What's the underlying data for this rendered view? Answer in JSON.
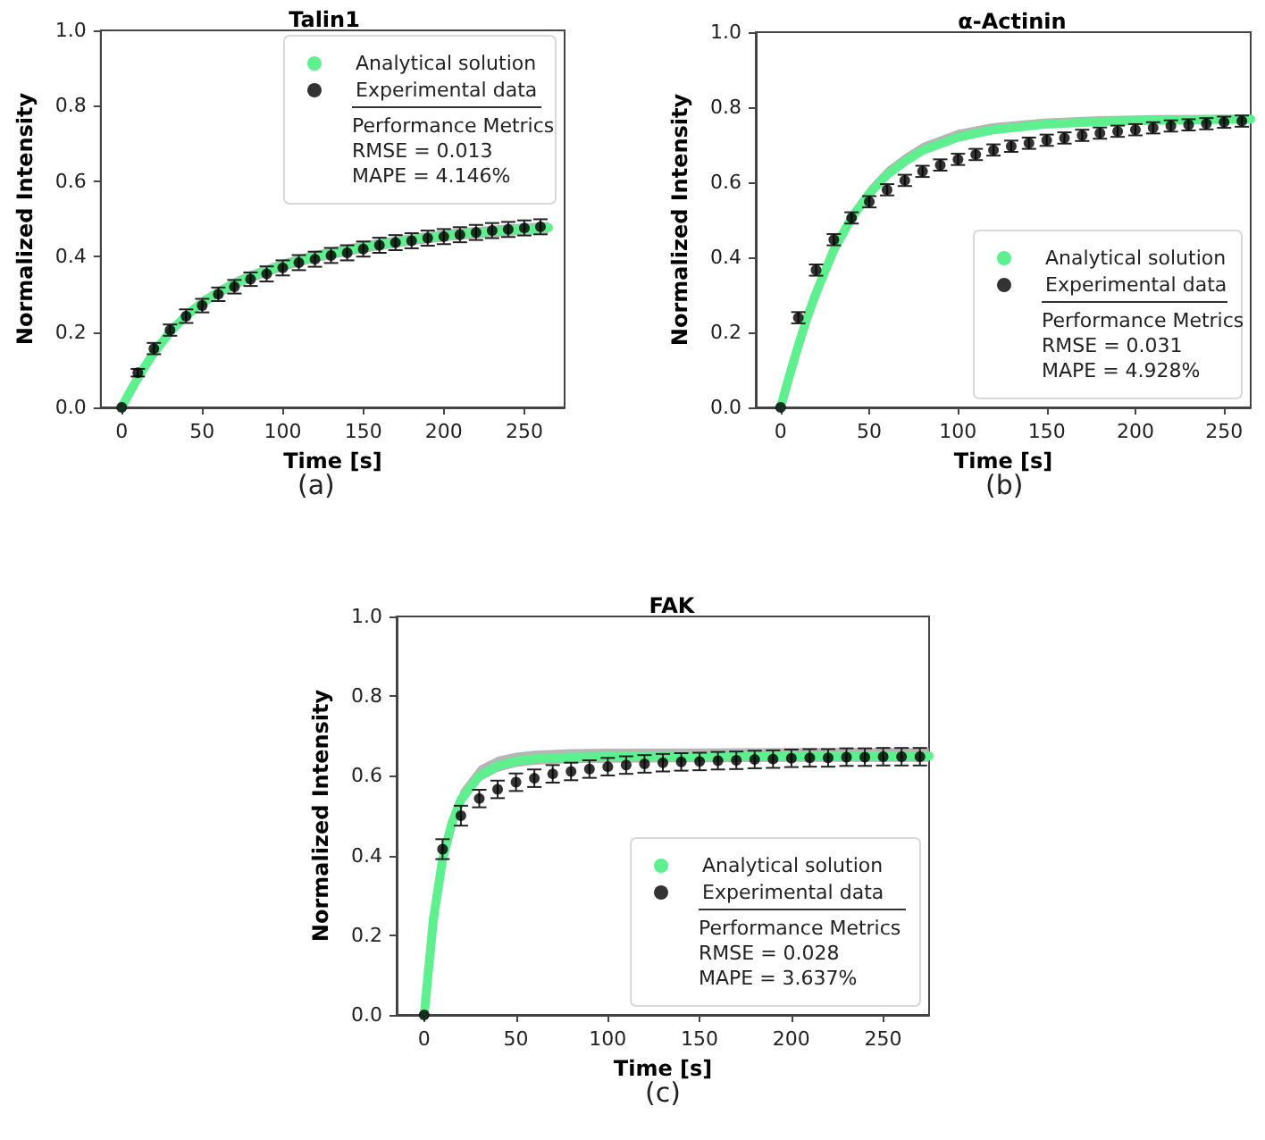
{
  "chart_data": [
    {
      "type": "line",
      "title": "Talin1",
      "xlabel": "Time [s]",
      "ylabel": "Normalized Intensity",
      "xlim": [
        -13,
        275
      ],
      "ylim": [
        0,
        1
      ],
      "xticks": [
        0,
        50,
        100,
        150,
        200,
        250
      ],
      "yticks": [
        {
          "value": 0,
          "label": "0.0"
        },
        {
          "value": 0.2,
          "label": "0.2"
        },
        {
          "value": 0.4,
          "label": "0.4"
        },
        {
          "value": 0.6,
          "label": "0.6"
        },
        {
          "value": 0.8,
          "label": "0.8"
        },
        {
          "value": 1,
          "label": "1.0"
        }
      ],
      "legend": "top right",
      "annotations": [
        "Performance Metrics",
        "RMSE = 0.013",
        "MAPE = 4.146%",
        "(a)"
      ],
      "series": [
        {
          "name": "Analytical solution",
          "marker": "none",
          "color": "#5ef08f",
          "x": [
            0,
            5,
            10,
            15,
            20,
            30,
            40,
            50,
            60,
            70,
            80,
            100,
            120,
            150,
            180,
            210,
            240,
            265
          ],
          "values": [
            0,
            0.04,
            0.078,
            0.112,
            0.145,
            0.2,
            0.243,
            0.278,
            0.305,
            0.328,
            0.347,
            0.377,
            0.4,
            0.425,
            0.445,
            0.46,
            0.47,
            0.477
          ],
          "lower": [
            0,
            0.03,
            0.065,
            0.097,
            0.13,
            0.185,
            0.228,
            0.263,
            0.29,
            0.313,
            0.332,
            0.362,
            0.385,
            0.41,
            0.43,
            0.445,
            0.455,
            0.462
          ],
          "upper": [
            0,
            0.05,
            0.09,
            0.127,
            0.16,
            0.215,
            0.258,
            0.293,
            0.32,
            0.343,
            0.362,
            0.392,
            0.415,
            0.44,
            0.46,
            0.475,
            0.485,
            0.492
          ]
        },
        {
          "name": "Experimental data",
          "type": "scatter",
          "marker": "circle",
          "color": "#000000",
          "x": [
            0,
            10,
            20,
            30,
            40,
            50,
            60,
            70,
            80,
            90,
            100,
            110,
            120,
            130,
            140,
            150,
            160,
            170,
            180,
            190,
            200,
            210,
            220,
            230,
            240,
            250,
            260
          ],
          "values": [
            0,
            0.092,
            0.156,
            0.205,
            0.242,
            0.27,
            0.3,
            0.32,
            0.34,
            0.354,
            0.37,
            0.384,
            0.393,
            0.403,
            0.41,
            0.42,
            0.43,
            0.437,
            0.442,
            0.449,
            0.453,
            0.458,
            0.464,
            0.469,
            0.472,
            0.476,
            0.479
          ],
          "errors": [
            null,
            0.01,
            0.015,
            0.015,
            0.018,
            0.018,
            0.018,
            0.018,
            0.018,
            0.02,
            0.02,
            0.02,
            0.02,
            0.02,
            0.02,
            0.02,
            0.02,
            0.02,
            0.02,
            0.02,
            0.02,
            0.02,
            0.02,
            0.02,
            0.02,
            0.02,
            0.02
          ]
        }
      ]
    },
    {
      "type": "line",
      "title": "α-Actinin",
      "xlabel": "Time [s]",
      "ylabel": "Normalized Intensity",
      "xlim": [
        -14,
        265
      ],
      "ylim": [
        0,
        1
      ],
      "xticks": [
        0,
        50,
        100,
        150,
        200,
        250
      ],
      "yticks": [
        {
          "value": 0,
          "label": "0.0"
        },
        {
          "value": 0.2,
          "label": "0.2"
        },
        {
          "value": 0.4,
          "label": "0.4"
        },
        {
          "value": 0.6,
          "label": "0.6"
        },
        {
          "value": 0.8,
          "label": "0.8"
        },
        {
          "value": 1,
          "label": "1.0"
        }
      ],
      "legend": "bottom right",
      "annotations": [
        "Performance Metrics",
        "RMSE = 0.031",
        "MAPE = 4.928%",
        "(b)"
      ],
      "series": [
        {
          "name": "Analytical solution",
          "marker": "none",
          "color": "#5ef08f",
          "x": [
            0,
            5,
            10,
            15,
            20,
            30,
            40,
            50,
            60,
            70,
            80,
            100,
            120,
            150,
            180,
            210,
            240,
            265
          ],
          "values": [
            0,
            0.085,
            0.165,
            0.24,
            0.305,
            0.42,
            0.505,
            0.57,
            0.62,
            0.655,
            0.685,
            0.72,
            0.74,
            0.755,
            0.762,
            0.765,
            0.767,
            0.768
          ],
          "lower": [
            0,
            0.08,
            0.155,
            0.23,
            0.295,
            0.41,
            0.495,
            0.56,
            0.61,
            0.645,
            0.675,
            0.71,
            0.73,
            0.745,
            0.752,
            0.755,
            0.757,
            0.758
          ],
          "upper": [
            0,
            0.09,
            0.175,
            0.255,
            0.32,
            0.435,
            0.525,
            0.59,
            0.64,
            0.675,
            0.705,
            0.74,
            0.758,
            0.77,
            0.776,
            0.779,
            0.78,
            0.78
          ]
        },
        {
          "name": "Experimental data",
          "type": "scatter",
          "marker": "circle",
          "color": "#000000",
          "x": [
            0,
            10,
            20,
            30,
            40,
            50,
            60,
            70,
            80,
            90,
            100,
            110,
            120,
            130,
            140,
            150,
            160,
            170,
            180,
            190,
            200,
            210,
            220,
            230,
            240,
            250,
            260
          ],
          "values": [
            0,
            0.239,
            0.366,
            0.447,
            0.505,
            0.548,
            0.58,
            0.605,
            0.629,
            0.646,
            0.661,
            0.674,
            0.686,
            0.696,
            0.704,
            0.712,
            0.718,
            0.725,
            0.731,
            0.736,
            0.74,
            0.745,
            0.75,
            0.753,
            0.756,
            0.76,
            0.763
          ],
          "errors": [
            null,
            0.015,
            0.015,
            0.015,
            0.015,
            0.015,
            0.015,
            0.015,
            0.015,
            0.015,
            0.015,
            0.015,
            0.015,
            0.015,
            0.015,
            0.015,
            0.015,
            0.015,
            0.015,
            0.015,
            0.015,
            0.015,
            0.015,
            0.015,
            0.015,
            0.015,
            0.015
          ]
        }
      ]
    },
    {
      "type": "line",
      "title": "FAK",
      "xlabel": "Time [s]",
      "ylabel": "Normalized Intensity",
      "xlim": [
        -15,
        275
      ],
      "ylim": [
        0,
        1
      ],
      "xticks": [
        0,
        50,
        100,
        150,
        200,
        250
      ],
      "yticks": [
        {
          "value": 0,
          "label": "0.0"
        },
        {
          "value": 0.2,
          "label": "0.2"
        },
        {
          "value": 0.4,
          "label": "0.4"
        },
        {
          "value": 0.6,
          "label": "0.6"
        },
        {
          "value": 0.8,
          "label": "0.8"
        },
        {
          "value": 1,
          "label": "1.0"
        }
      ],
      "legend": "bottom right",
      "annotations": [
        "Performance Metrics",
        "RMSE = 0.028",
        "MAPE = 3.637%",
        "(c)"
      ],
      "series": [
        {
          "name": "Analytical solution",
          "marker": "none",
          "color": "#5ef08f",
          "x": [
            0,
            5,
            10,
            15,
            20,
            30,
            40,
            50,
            60,
            80,
            100,
            150,
            200,
            275
          ],
          "values": [
            0,
            0.24,
            0.39,
            0.48,
            0.54,
            0.6,
            0.625,
            0.637,
            0.643,
            0.647,
            0.648,
            0.649,
            0.65,
            0.65
          ],
          "lower": [
            0,
            0.23,
            0.375,
            0.465,
            0.525,
            0.585,
            0.61,
            0.622,
            0.628,
            0.632,
            0.633,
            0.634,
            0.635,
            0.635
          ],
          "upper": [
            0,
            0.26,
            0.41,
            0.5,
            0.565,
            0.625,
            0.648,
            0.658,
            0.663,
            0.667,
            0.668,
            0.669,
            0.67,
            0.67
          ]
        },
        {
          "name": "Experimental data",
          "type": "scatter",
          "marker": "circle",
          "color": "#000000",
          "x": [
            0,
            10,
            20,
            30,
            40,
            50,
            60,
            70,
            80,
            90,
            100,
            110,
            120,
            130,
            140,
            150,
            160,
            170,
            180,
            190,
            200,
            210,
            220,
            230,
            240,
            250,
            260,
            270
          ],
          "values": [
            0,
            0.416,
            0.5,
            0.543,
            0.566,
            0.584,
            0.594,
            0.605,
            0.611,
            0.617,
            0.623,
            0.627,
            0.63,
            0.633,
            0.635,
            0.636,
            0.638,
            0.639,
            0.641,
            0.642,
            0.644,
            0.645,
            0.645,
            0.647,
            0.647,
            0.648,
            0.648,
            0.648
          ],
          "errors": [
            null,
            0.025,
            0.025,
            0.022,
            0.022,
            0.022,
            0.022,
            0.022,
            0.022,
            0.022,
            0.022,
            0.022,
            0.022,
            0.022,
            0.022,
            0.022,
            0.022,
            0.022,
            0.022,
            0.022,
            0.022,
            0.022,
            0.022,
            0.022,
            0.022,
            0.022,
            0.022,
            0.022
          ]
        }
      ]
    }
  ]
}
